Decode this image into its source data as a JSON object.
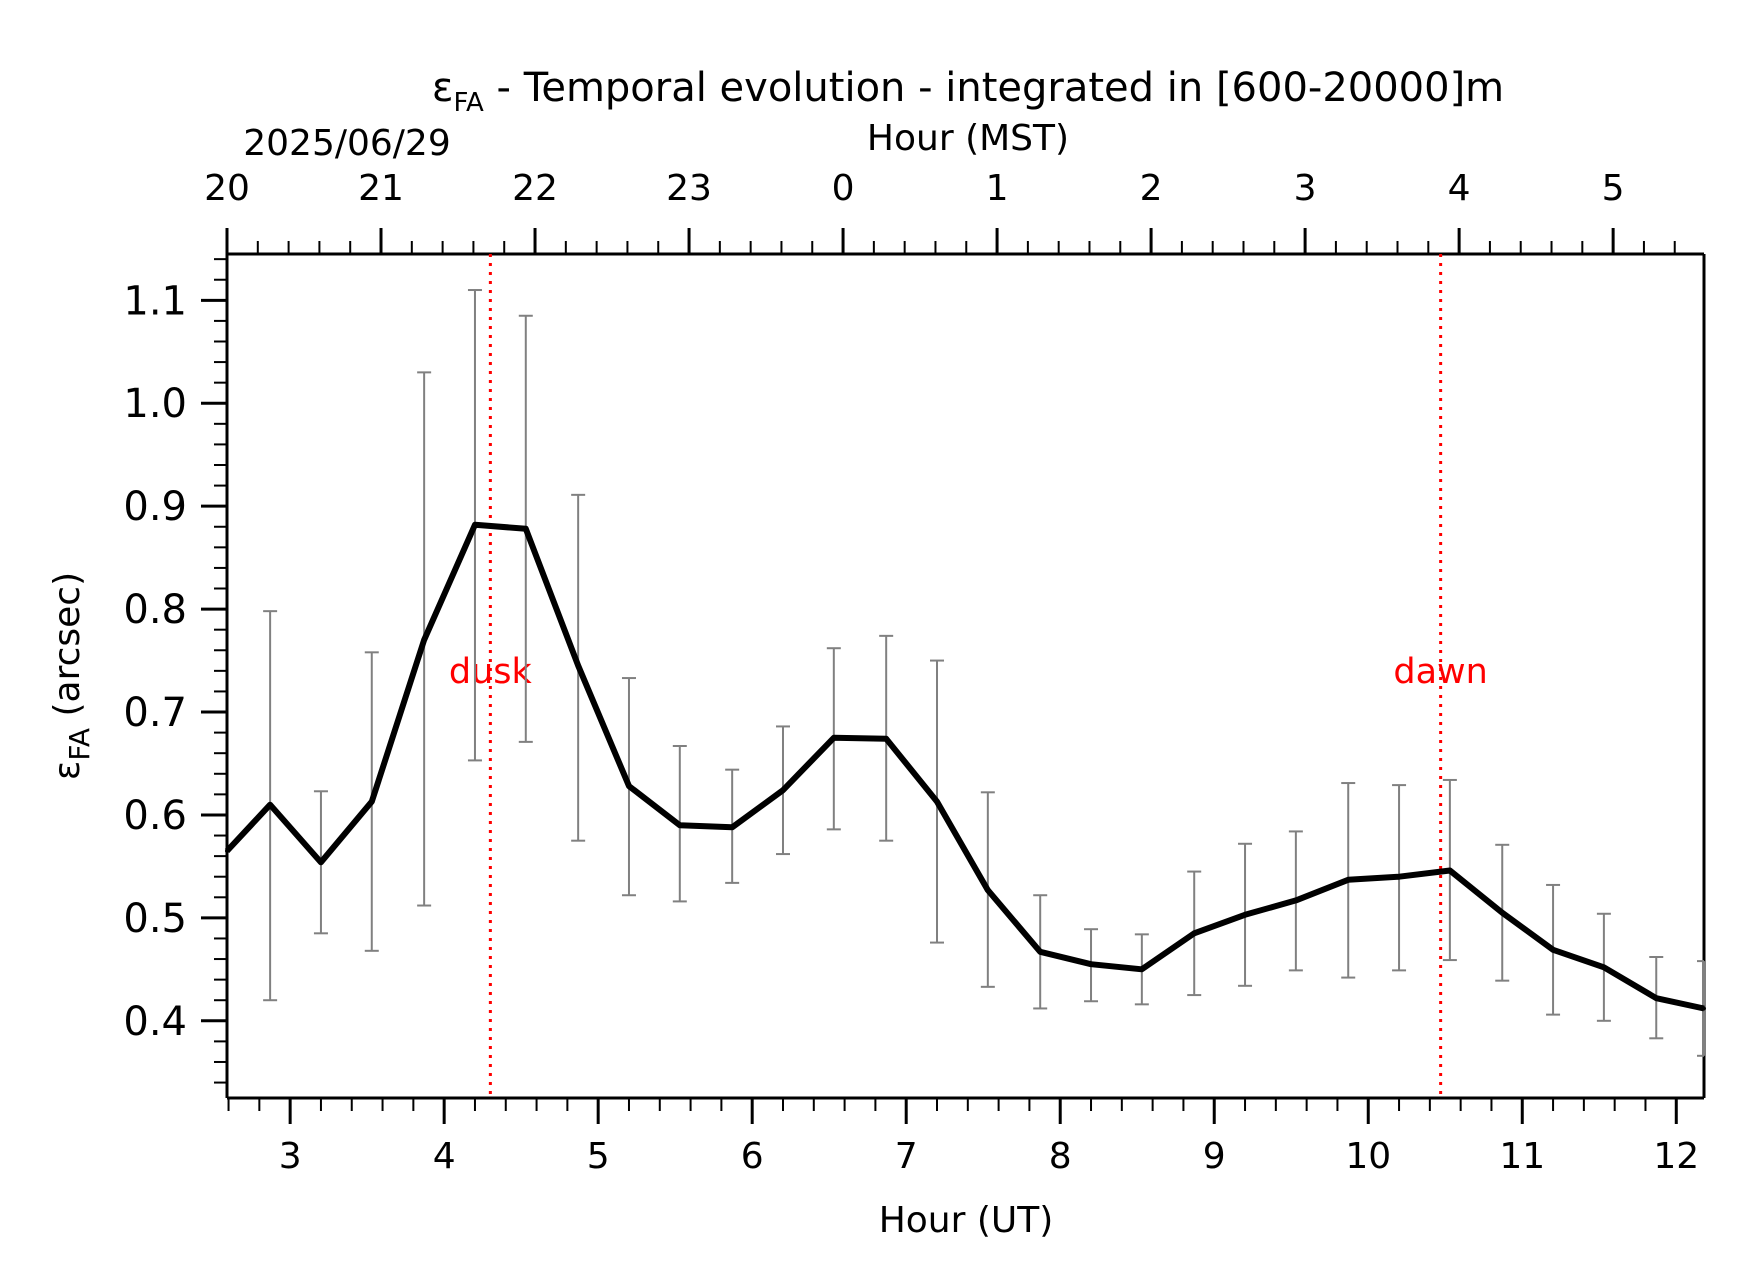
{
  "chart_data": {
    "type": "line",
    "title_main": "ε",
    "title_sub": "FA",
    "title_rest": " - Temporal evolution - integrated in [600-20000]m",
    "date_label": "2025/06/29",
    "xlabel_top": "Hour (MST)",
    "xlabel_bottom": "Hour (UT)",
    "ylabel_main": "ε",
    "ylabel_sub": "FA",
    "ylabel_rest": " (arcsec)",
    "xlim": [
      2.59,
      12.18
    ],
    "ylim": [
      0.325,
      1.145
    ],
    "x_ticks": [
      3,
      4,
      5,
      6,
      7,
      8,
      9,
      10,
      11,
      12
    ],
    "x_tick_labels": [
      "3",
      "4",
      "5",
      "6",
      "7",
      "8",
      "9",
      "10",
      "11",
      "12"
    ],
    "y_ticks": [
      0.4,
      0.5,
      0.6,
      0.7,
      0.8,
      0.9,
      1.0,
      1.1
    ],
    "y_tick_labels": [
      "0.4",
      "0.5",
      "0.6",
      "0.7",
      "0.8",
      "0.9",
      "1.0",
      "1.1"
    ],
    "top_ticks": [
      2.59,
      3.59,
      4.59,
      5.59,
      6.59,
      7.59,
      8.59,
      9.59,
      10.59,
      11.59
    ],
    "top_tick_labels": [
      "20",
      "21",
      "22",
      "23",
      "0",
      "1",
      "2",
      "3",
      "4",
      "5"
    ],
    "line_color": "#000000",
    "errorbar_color": "#808080",
    "event_color": "#ff0000",
    "events": [
      {
        "x": 4.3,
        "label": "dusk"
      },
      {
        "x": 10.47,
        "label": "dawn"
      }
    ],
    "series": [
      {
        "x": [
          2.59,
          2.87,
          3.2,
          3.53,
          3.87,
          4.2,
          4.53,
          4.87,
          5.2,
          5.53,
          5.87,
          6.2,
          6.53,
          6.87,
          7.2,
          7.53,
          7.87,
          8.2,
          8.53,
          8.87,
          9.2,
          9.53,
          9.87,
          10.2,
          10.53,
          10.87,
          11.2,
          11.53,
          11.87,
          12.18
        ],
        "y": [
          0.565,
          0.61,
          0.554,
          0.613,
          0.77,
          0.882,
          0.878,
          0.745,
          0.628,
          0.59,
          0.588,
          0.624,
          0.675,
          0.674,
          0.613,
          0.527,
          0.467,
          0.455,
          0.45,
          0.485,
          0.503,
          0.517,
          0.537,
          0.54,
          0.546,
          0.505,
          0.469,
          0.452,
          0.422,
          0.412
        ],
        "err_low": [
          null,
          0.42,
          0.485,
          0.468,
          0.512,
          0.653,
          0.671,
          0.575,
          0.522,
          0.516,
          0.534,
          0.562,
          0.586,
          0.575,
          0.476,
          0.433,
          0.412,
          0.419,
          0.416,
          0.425,
          0.434,
          0.449,
          0.442,
          0.449,
          0.459,
          0.439,
          0.406,
          0.4,
          0.383,
          0.366
        ],
        "err_high": [
          null,
          0.798,
          0.623,
          0.758,
          1.03,
          1.11,
          1.085,
          0.911,
          0.733,
          0.667,
          0.644,
          0.686,
          0.762,
          0.774,
          0.75,
          0.622,
          0.522,
          0.489,
          0.484,
          0.545,
          0.572,
          0.584,
          0.631,
          0.629,
          0.634,
          0.571,
          0.532,
          0.504,
          0.462,
          0.458
        ]
      }
    ]
  }
}
